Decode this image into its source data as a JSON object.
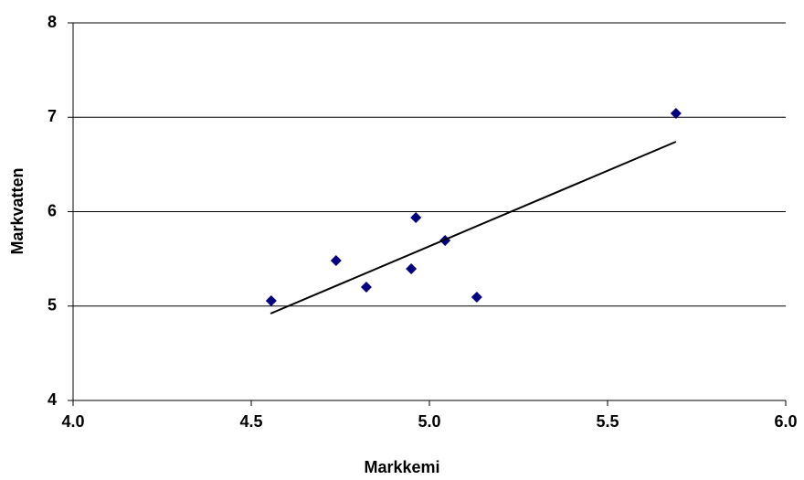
{
  "chart_data": {
    "type": "scatter",
    "x_label": "Markkemi",
    "y_label": "Markvatten",
    "series": [
      {
        "type": "scatter",
        "color": "#000080",
        "marker": "diamond",
        "x": [
          4.556,
          4.738,
          4.823,
          4.949,
          4.962,
          5.044,
          5.133,
          5.692
        ],
        "values": [
          5.056,
          5.482,
          5.201,
          5.395,
          5.937,
          5.695,
          5.094,
          7.041
        ]
      },
      {
        "type": "line",
        "color": "#000000",
        "x": [
          4.554,
          5.692
        ],
        "values": [
          4.92,
          6.741
        ]
      }
    ],
    "xlim": [
      4,
      6
    ],
    "xticks": [
      {
        "value": 4,
        "label": "4.0"
      },
      4.5,
      {
        "value": 5,
        "label": "5.0"
      },
      5.5,
      {
        "value": 6,
        "label": "6.0"
      }
    ],
    "ylim": [
      4,
      8
    ],
    "yticks": [
      4,
      5,
      6,
      7,
      8
    ],
    "grid": true
  }
}
